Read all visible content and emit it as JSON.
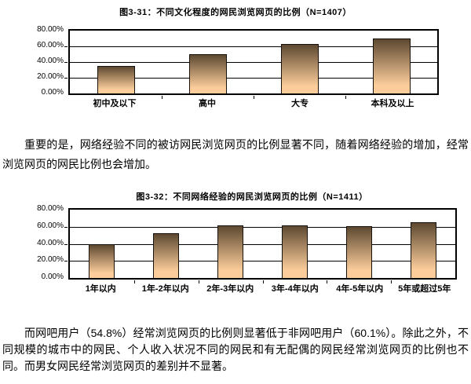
{
  "page": {
    "background": "#ffffff",
    "text_color": "#000000"
  },
  "colors": {
    "bar_gradient_top": "#5d4931",
    "bar_gradient_bottom": "#fccd9b",
    "bar_border": "#17120c",
    "axis_border": "#000000",
    "gridline": "#000000"
  },
  "paragraphs": [
    "重要的是，网络经验不同的被访网民浏览网页的比例显著不同，随着网络经验的增加，经常浏览网页的网民比例也会增加。",
    "而网吧用户（54.8%）经常浏览网页的比例则显著低于非网吧用户（60.1%）。除此之外，不同规模的城市中的网民、个人收入状况不同的网民和有无配偶的网民经常浏览网页的比例也不同。而男女网民经常浏览网页的差别并不显著。"
  ],
  "chart_data": [
    {
      "type": "bar",
      "title": "图3-31：不同文化程度的网民浏览网页的比例（N=1407）",
      "categories": [
        "初中及以下",
        "高中",
        "大专",
        "本科及以上"
      ],
      "values": [
        35,
        50,
        63,
        70
      ],
      "xlabel": "",
      "ylabel": "",
      "ylim": [
        0,
        80
      ],
      "ytick_labels": [
        "80.00%",
        "60.00%",
        "40.00%",
        "20.00%",
        "0.00%"
      ],
      "grid": true,
      "legend": "none",
      "sample_size": "N=1407"
    },
    {
      "type": "bar",
      "title": "图3-32：不同网络经验的网民浏览网页的比例（N=1411）",
      "categories": [
        "1年以内",
        "1年-2年以内",
        "2年-3年以内",
        "3年-4年以内",
        "4年-5年以内",
        "5年或超过5年"
      ],
      "values": [
        40,
        52.5,
        61.5,
        61.5,
        61,
        65.5
      ],
      "xlabel": "",
      "ylabel": "",
      "ylim": [
        0,
        80
      ],
      "ytick_labels": [
        "80.00%",
        "60.00%",
        "40.00%",
        "20.00%",
        "0.00%"
      ],
      "grid": true,
      "legend": "none",
      "sample_size": "N=1411"
    }
  ]
}
